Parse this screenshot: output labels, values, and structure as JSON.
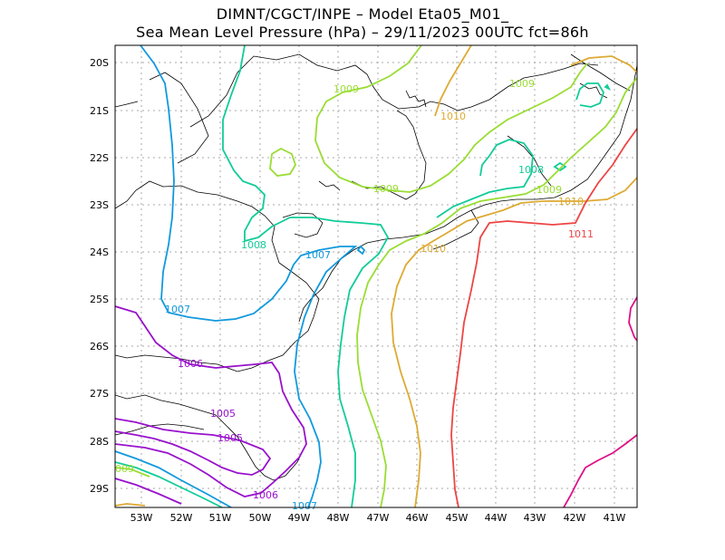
{
  "title": {
    "line1": "DIMNT/CGCT/INPE –  Model Eta05_M01_",
    "line2": "Sea Mean Level Pressure (hPa) – 29/11/2023 00UTC fct=86h"
  },
  "axes": {
    "lat_labels": [
      "20S",
      "21S",
      "22S",
      "23S",
      "24S",
      "25S",
      "26S",
      "27S",
      "28S",
      "29S"
    ],
    "lon_labels": [
      "53W",
      "52W",
      "51W",
      "50W",
      "49W",
      "48W",
      "47W",
      "46W",
      "45W",
      "44W",
      "43W",
      "42W",
      "41W"
    ]
  },
  "contour_labels": [
    {
      "text": "1009",
      "color": "#99dd33"
    },
    {
      "text": "1009",
      "color": "#99dd33"
    },
    {
      "text": "1010",
      "color": "#ddaa33"
    },
    {
      "text": "1008",
      "color": "#11cc99"
    },
    {
      "text": "1009",
      "color": "#99dd33"
    },
    {
      "text": "1009",
      "color": "#99dd33"
    },
    {
      "text": "1010",
      "color": "#ddaa33"
    },
    {
      "text": "1011",
      "color": "#ee4444"
    },
    {
      "text": "1008",
      "color": "#11cc99"
    },
    {
      "text": "1007",
      "color": "#1199dd"
    },
    {
      "text": "1010",
      "color": "#ddaa33"
    },
    {
      "text": "1007",
      "color": "#1199dd"
    },
    {
      "text": "1006",
      "color": "#9911cc"
    },
    {
      "text": "1005",
      "color": "#9911cc"
    },
    {
      "text": "1005",
      "color": "#9911cc"
    },
    {
      "text": "009",
      "color": "#99dd33"
    },
    {
      "text": "1006",
      "color": "#9911cc"
    },
    {
      "text": "1007",
      "color": "#1199dd"
    }
  ]
}
